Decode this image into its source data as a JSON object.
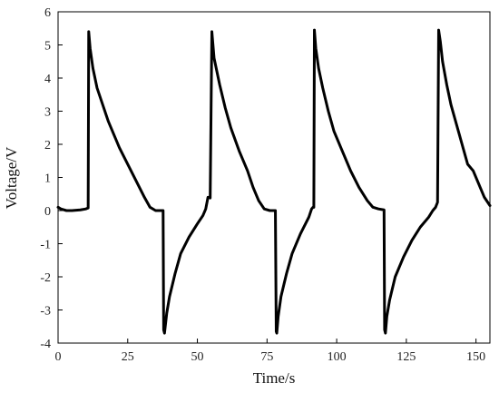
{
  "chart_data": {
    "type": "line",
    "title": "",
    "xlabel": "Time/s",
    "ylabel": "Voltage/V",
    "xlim": [
      0,
      155
    ],
    "ylim": [
      -4,
      6
    ],
    "xticks": [
      0,
      25,
      50,
      75,
      100,
      125,
      150
    ],
    "yticks": [
      -4,
      -3,
      -2,
      -1,
      0,
      1,
      2,
      3,
      4,
      5,
      6
    ],
    "grid": false,
    "legend": "none",
    "line_color": "#000000",
    "series": [
      {
        "x": [
          0,
          1,
          3,
          5,
          8,
          10,
          10.8,
          11.0,
          11.5,
          12.5,
          14,
          16,
          18,
          20,
          22,
          25,
          28,
          31,
          33,
          35,
          36,
          37,
          37.7,
          37.9,
          38.2,
          39,
          40,
          42,
          44,
          47,
          50,
          52,
          53,
          53.8,
          54.2,
          54.6,
          55.2,
          56,
          58,
          60,
          62,
          65,
          68,
          70,
          72,
          74,
          76,
          78,
          78.3,
          78.5,
          79,
          80,
          82,
          84,
          87,
          90,
          91,
          91.5,
          91.8,
          92.0,
          92.5,
          93.5,
          95,
          97,
          99,
          102,
          105,
          108,
          111,
          113,
          115,
          117,
          117.2,
          117.5,
          118,
          119,
          121,
          124,
          127,
          130,
          133,
          134.5,
          135.5,
          136.2,
          136.6,
          137.2,
          138,
          139.5,
          141,
          143,
          145,
          147,
          149,
          151,
          153,
          155
        ],
        "y": [
          0.1,
          0.05,
          0.0,
          0.0,
          0.02,
          0.05,
          0.08,
          5.4,
          4.9,
          4.3,
          3.7,
          3.2,
          2.7,
          2.3,
          1.9,
          1.4,
          0.9,
          0.4,
          0.1,
          0.0,
          0.0,
          0.0,
          0.0,
          -3.6,
          -3.7,
          -3.1,
          -2.6,
          -1.9,
          -1.3,
          -0.8,
          -0.4,
          -0.15,
          0.05,
          0.4,
          0.4,
          0.38,
          5.4,
          4.6,
          3.8,
          3.1,
          2.5,
          1.8,
          1.2,
          0.7,
          0.3,
          0.05,
          0.0,
          0.0,
          -3.65,
          -3.7,
          -3.2,
          -2.6,
          -1.9,
          -1.3,
          -0.7,
          -0.2,
          0.05,
          0.1,
          0.1,
          5.45,
          4.9,
          4.3,
          3.7,
          3.0,
          2.4,
          1.8,
          1.2,
          0.7,
          0.3,
          0.1,
          0.05,
          0.02,
          -3.6,
          -3.7,
          -3.2,
          -2.7,
          -2.0,
          -1.4,
          -0.9,
          -0.5,
          -0.2,
          0.0,
          0.1,
          0.25,
          5.45,
          5.1,
          4.5,
          3.8,
          3.2,
          2.6,
          2.0,
          1.4,
          1.2,
          0.8,
          0.4,
          0.15
        ]
      }
    ]
  }
}
